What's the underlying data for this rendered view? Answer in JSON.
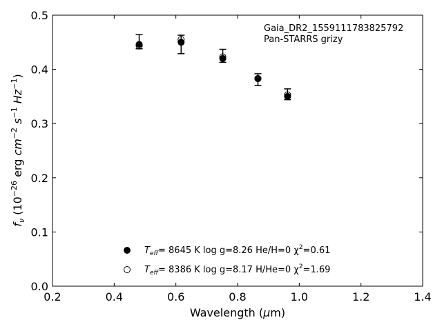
{
  "chart_data": {
    "type": "scatter",
    "annotation": [
      "Gaia_DR2_1559111783825792",
      "Pan-STARRS grizy"
    ],
    "xlabel": "Wavelength (μm)",
    "ylabel": "fν (10⁻²⁶ erg cm⁻² s⁻¹ Hz⁻¹)",
    "xlim": [
      0.2,
      1.4
    ],
    "ylim": [
      0.0,
      0.5
    ],
    "xticks": [
      "0.2",
      "0.4",
      "0.6",
      "0.8",
      "1.0",
      "1.2",
      "1.4"
    ],
    "yticks": [
      "0.0",
      "0.1",
      "0.2",
      "0.3",
      "0.4",
      "0.5"
    ],
    "grid": false,
    "legend_position": "bottom-center",
    "observed": {
      "x": [
        0.481,
        0.617,
        0.752,
        0.866,
        0.962
      ],
      "y": [
        0.451,
        0.446,
        0.425,
        0.381,
        0.354
      ],
      "yerr": [
        0.013,
        0.017,
        0.012,
        0.011,
        0.01
      ]
    },
    "series": [
      {
        "name": "T_eff= 8645 K  log g=8.26  He/H=0  χ²=0.61",
        "marker": "filled-circle",
        "x": [
          0.481,
          0.617,
          0.752,
          0.866,
          0.962
        ],
        "y": [
          0.446,
          0.45,
          0.42,
          0.383,
          0.35
        ]
      },
      {
        "name": "T_eff= 8386 K  log g=8.17  H/He=0  χ²=1.69",
        "marker": "open-circle",
        "x": [
          0.481,
          0.617,
          0.752,
          0.866,
          0.962
        ],
        "y": [
          0.443,
          0.455,
          0.423,
          0.383,
          0.353
        ]
      }
    ],
    "legend": [
      {
        "teff_label": "T",
        "teff_sub": "eff",
        "text": "=  8645 K  log g=8.26  He/H=0  χ",
        "sup": "2",
        "tail": "=0.61"
      },
      {
        "teff_label": "T",
        "teff_sub": "eff",
        "text": "=  8386 K  log g=8.17  H/He=0  χ",
        "sup": "2",
        "tail": "=1.69"
      }
    ]
  }
}
